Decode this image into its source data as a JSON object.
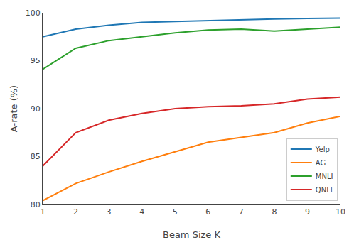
{
  "chart_data": {
    "type": "line",
    "xlabel": "Beam Size K",
    "ylabel": "A-rate (%)",
    "x": [
      1,
      2,
      3,
      4,
      5,
      6,
      7,
      8,
      9,
      10
    ],
    "series": [
      {
        "name": "Yelp",
        "color": "#1f77b4",
        "values": [
          97.5,
          98.3,
          98.7,
          99.0,
          99.1,
          99.2,
          99.3,
          99.35,
          99.4,
          99.45
        ]
      },
      {
        "name": "AG",
        "color": "#ff7f0e",
        "values": [
          80.4,
          82.2,
          83.4,
          84.5,
          85.5,
          86.5,
          87.0,
          87.5,
          88.5,
          89.2
        ]
      },
      {
        "name": "MNLI",
        "color": "#2ca02c",
        "values": [
          94.1,
          96.3,
          97.1,
          97.5,
          97.9,
          98.2,
          98.3,
          98.1,
          98.3,
          98.5
        ]
      },
      {
        "name": "QNLI",
        "color": "#d62728",
        "values": [
          84.0,
          87.5,
          88.8,
          89.5,
          90.0,
          90.2,
          90.3,
          90.5,
          91.0,
          91.2
        ]
      }
    ],
    "xlim": [
      1,
      10
    ],
    "ylim": [
      80,
      100
    ],
    "xticks": [
      1,
      2,
      3,
      4,
      5,
      6,
      7,
      8,
      9,
      10
    ],
    "yticks": [
      80,
      85,
      90,
      95,
      100
    ],
    "legend": "lower right",
    "grid": false
  }
}
